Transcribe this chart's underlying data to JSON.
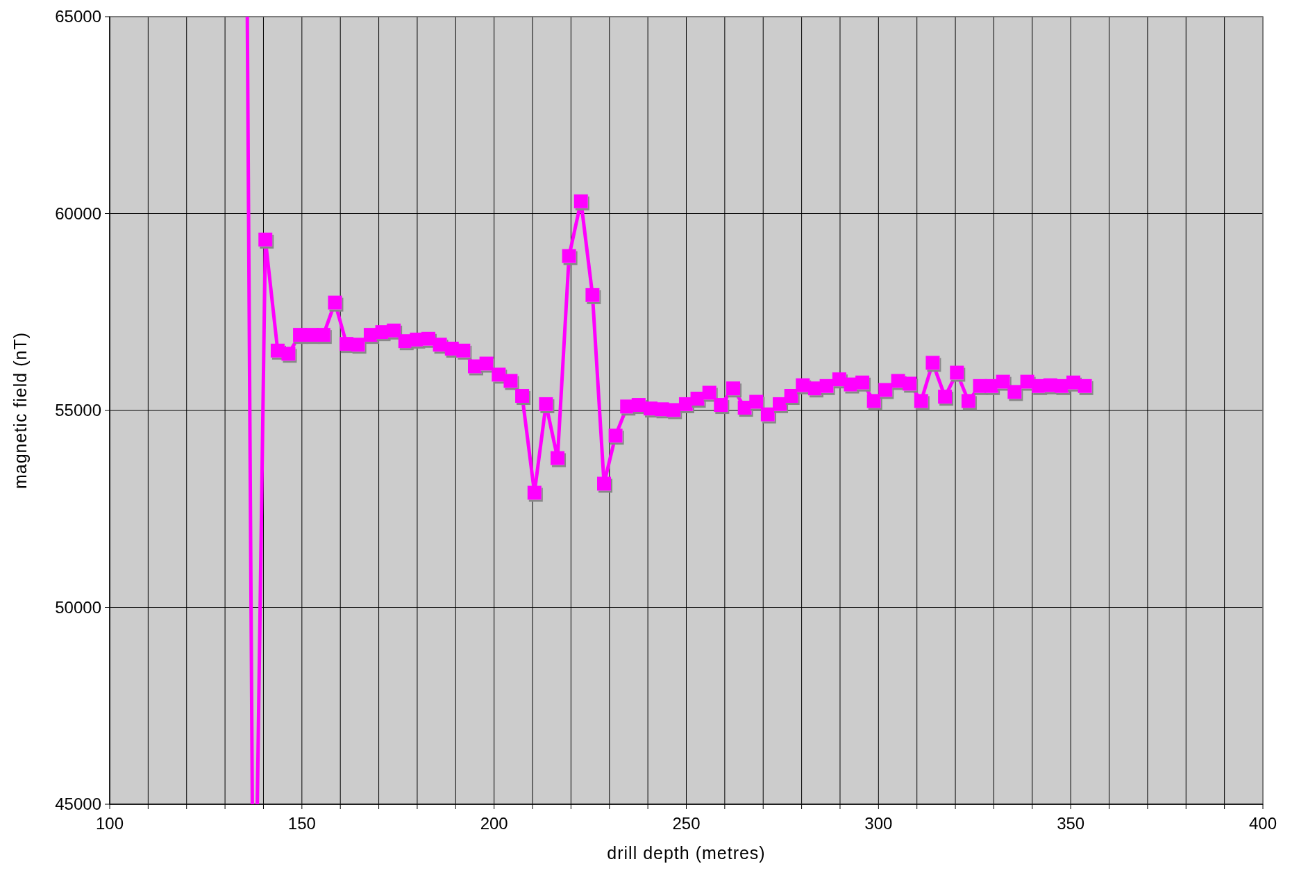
{
  "chart_data": {
    "type": "line",
    "xlabel": "drill depth (metres)",
    "ylabel": "magnetic field (nT)",
    "xlim": [
      100,
      400
    ],
    "ylim": [
      45000,
      65000
    ],
    "xticks": [
      100,
      {
        "value": 110,
        "label": null
      },
      {
        "value": 120,
        "label": null
      },
      {
        "value": 130,
        "label": null
      },
      {
        "value": 140,
        "label": null
      },
      150,
      {
        "value": 160,
        "label": null
      },
      {
        "value": 170,
        "label": null
      },
      {
        "value": 180,
        "label": null
      },
      {
        "value": 190,
        "label": null
      },
      200,
      {
        "value": 210,
        "label": null
      },
      {
        "value": 220,
        "label": null
      },
      {
        "value": 230,
        "label": null
      },
      {
        "value": 240,
        "label": null
      },
      250,
      {
        "value": 260,
        "label": null
      },
      {
        "value": 270,
        "label": null
      },
      {
        "value": 280,
        "label": null
      },
      {
        "value": 290,
        "label": null
      },
      300,
      {
        "value": 310,
        "label": null
      },
      {
        "value": 320,
        "label": null
      },
      {
        "value": 330,
        "label": null
      },
      {
        "value": 340,
        "label": null
      },
      350,
      {
        "value": 360,
        "label": null
      },
      {
        "value": 370,
        "label": null
      },
      {
        "value": 380,
        "label": null
      },
      {
        "value": 390,
        "label": null
      },
      400
    ],
    "yticks": [
      45000,
      50000,
      55000,
      60000,
      65000
    ],
    "grid": true,
    "series": [
      {
        "color": "#ff00ff",
        "marker": "none",
        "x": [
          135.8,
          137.1,
          137.5,
          138.4,
          140.5
        ],
        "values": [
          65000,
          45000,
          null,
          45000,
          59340
        ]
      },
      {
        "color": "#ff00ff",
        "marker": "square",
        "x": [
          140.5,
          143.7,
          146.5,
          149.5,
          152.6,
          155.6,
          158.6,
          161.6,
          164.6,
          167.9,
          170.9,
          173.9,
          176.9,
          179.9,
          182.9,
          185.9,
          189.0,
          192.0,
          195.0,
          198.0,
          201.2,
          204.3,
          207.3,
          210.5,
          213.5,
          216.5,
          219.5,
          222.6,
          225.6,
          228.6,
          231.6,
          234.6,
          237.6,
          240.7,
          243.7,
          246.7,
          249.9,
          252.9,
          256.0,
          259.0,
          262.2,
          265.2,
          268.2,
          271.2,
          274.3,
          277.3,
          280.3,
          283.5,
          286.5,
          289.8,
          292.8,
          295.8,
          298.8,
          301.8,
          305.1,
          308.1,
          311.1,
          314.1,
          317.3,
          320.4,
          323.4,
          326.4,
          329.4,
          332.4,
          335.4,
          338.7,
          341.7,
          344.7,
          347.7,
          350.7,
          353.7
        ],
        "values": [
          59340,
          56520,
          56440,
          56920,
          56920,
          56920,
          57740,
          56690,
          56670,
          56920,
          56990,
          57030,
          56760,
          56800,
          56820,
          56670,
          56570,
          56520,
          56120,
          56190,
          55910,
          55750,
          55370,
          52910,
          55160,
          53790,
          58920,
          60310,
          57930,
          53140,
          54360,
          55100,
          55140,
          55050,
          55030,
          55010,
          55160,
          55300,
          55450,
          55140,
          55560,
          55070,
          55220,
          54900,
          55160,
          55370,
          55640,
          55560,
          55620,
          55790,
          55660,
          55710,
          55240,
          55520,
          55750,
          55680,
          55240,
          56210,
          55350,
          55960,
          55240,
          55620,
          55620,
          55730,
          55470,
          55730,
          55620,
          55640,
          55620,
          55710,
          55620
        ]
      }
    ]
  }
}
